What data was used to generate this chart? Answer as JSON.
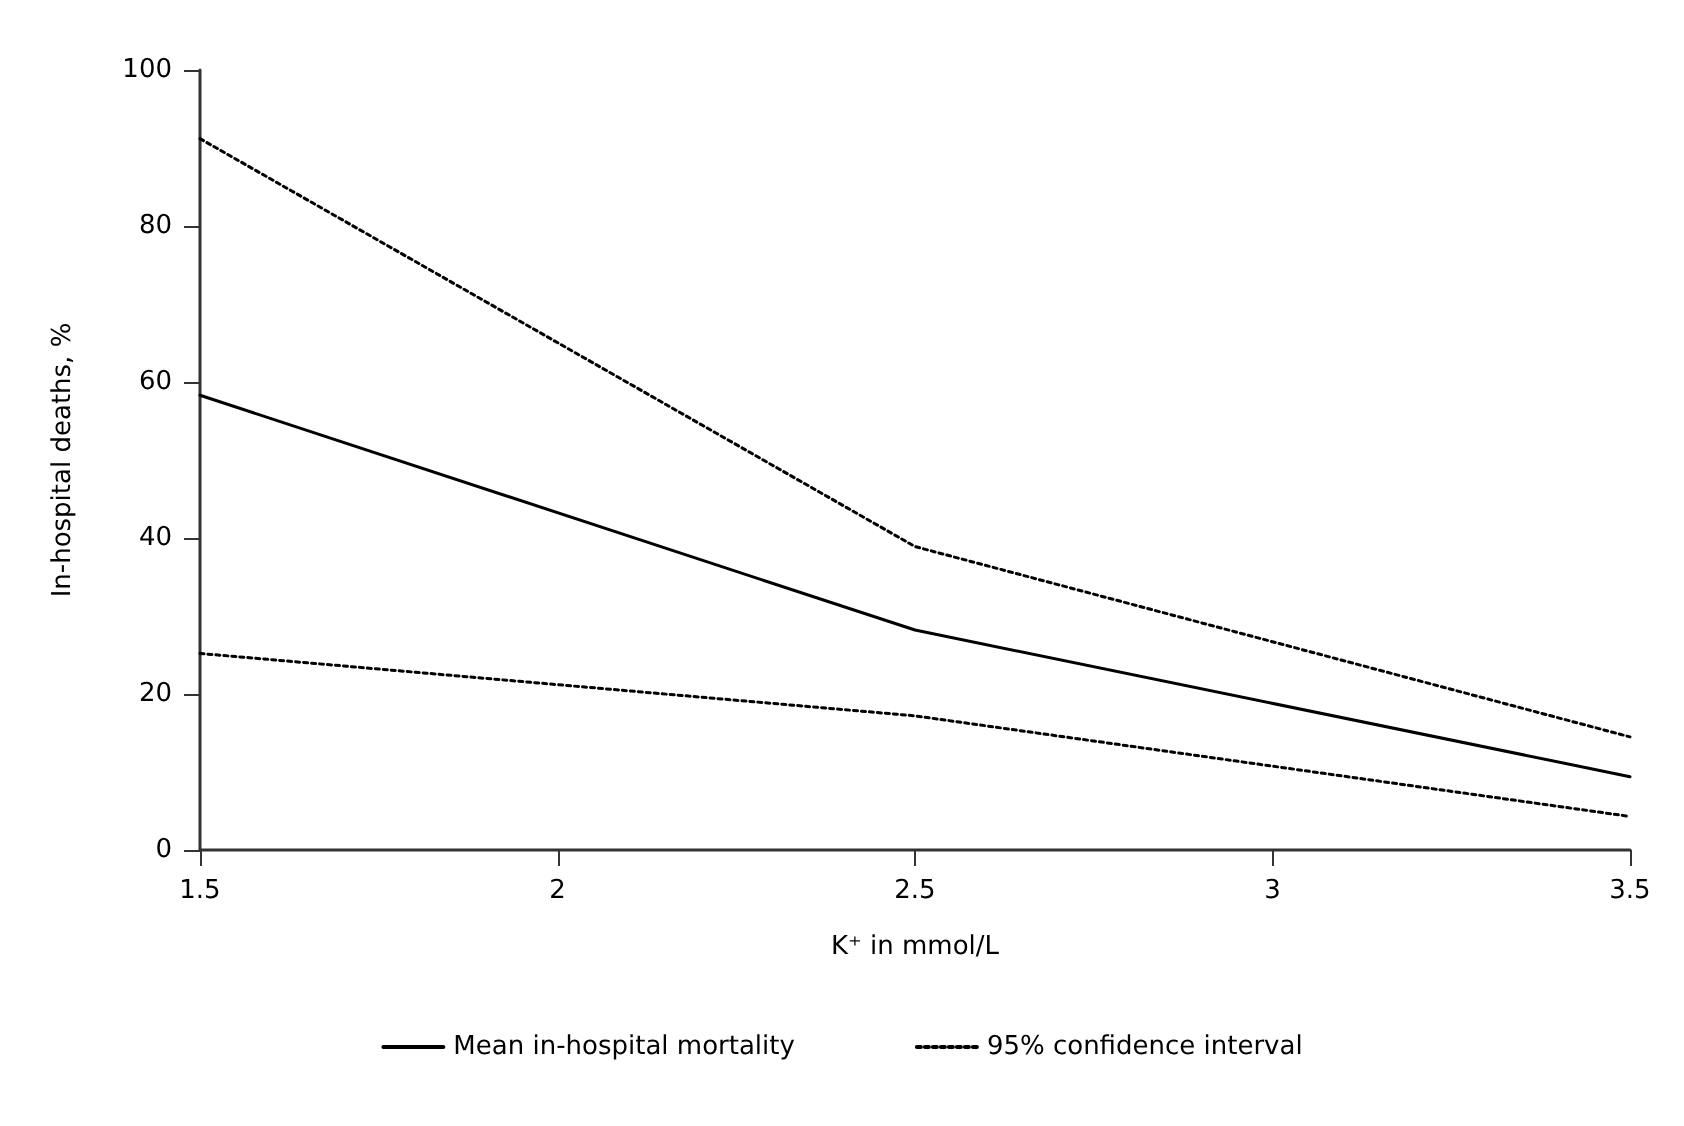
{
  "chart_data": {
    "type": "line",
    "xlabel": "K⁺ in mmol/L",
    "ylabel": "In-hospital deaths, %",
    "x": [
      1.5,
      2.5,
      3.5
    ],
    "series": [
      {
        "name": "Mean in-hospital mortality",
        "color": "#000000",
        "line_style": "solid",
        "values": [
          58.3,
          28.2,
          9.4
        ]
      },
      {
        "name": "95% confidence interval",
        "color": "#000000",
        "line_style": "dotted",
        "values": [
          91.2,
          38.9,
          14.5
        ]
      },
      {
        "color": "#000000",
        "line_style": "dotted",
        "values": [
          25.2,
          17.2,
          4.3
        ]
      }
    ],
    "xlim": [
      1.5,
      3.5
    ],
    "xticks": [
      1.5,
      2,
      2.5,
      3,
      3.5
    ],
    "ylim": [
      0,
      100
    ],
    "yticks": [
      0,
      20,
      40,
      60,
      80,
      100
    ],
    "grid": false,
    "legend": "bottom",
    "marker": "none"
  }
}
